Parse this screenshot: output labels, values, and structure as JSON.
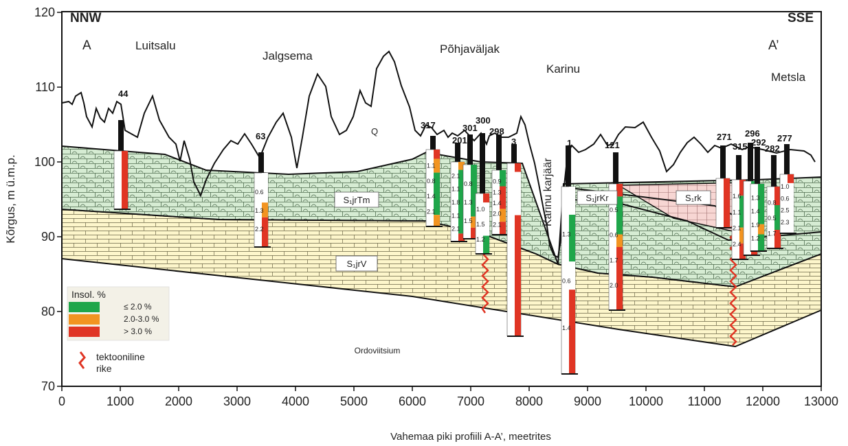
{
  "figure": {
    "ylabel": "Kõrgus, m ü.m.p.",
    "xlabel": "Vahemaa piki profiili A-A’, meetrites",
    "x_ticks": [
      "0",
      "1000",
      "2000",
      "3000",
      "4000",
      "5000",
      "6000",
      "7000",
      "8000",
      "9000",
      "10000",
      "11000",
      "12000",
      "13000"
    ],
    "y_ticks": [
      "70",
      "80",
      "90",
      "100",
      "110",
      "120"
    ],
    "direction_left": "NNW",
    "direction_right": "SSE",
    "profile_start": "A",
    "profile_end": "A’"
  },
  "places": [
    "Luitsalu",
    "Jalgsema",
    "Põhjaväljak",
    "Karinu",
    "Metsla"
  ],
  "quarry": "Karinu karjäär",
  "units": {
    "q": "Q",
    "jrtm": "S₁jrTm",
    "jrv": "S₁jrV",
    "jrkr": "S₁jrKr",
    "rk": "S₁rk",
    "ordovician": "Ordoviitsium"
  },
  "wells": [
    {
      "id": "44",
      "values": []
    },
    {
      "id": "63",
      "values": [
        "0.6",
        "1.3",
        "2.2"
      ]
    },
    {
      "id": "317",
      "values": [
        "1.1",
        "0.8",
        "1.4",
        "2.1"
      ]
    },
    {
      "id": "201",
      "values": [
        "2.1",
        "1.1",
        "1.8",
        "1.1",
        "2.1"
      ]
    },
    {
      "id": "301",
      "values": [
        "0.8",
        "1.3",
        "1.5"
      ]
    },
    {
      "id": "300",
      "values": [
        "1.0",
        "1.5",
        "1.2"
      ]
    },
    {
      "id": "298",
      "values": [
        "0.9",
        "1.3",
        "1.4",
        "2.0",
        "2.1"
      ]
    },
    {
      "id": "3",
      "values": []
    },
    {
      "id": "1",
      "values": [
        "1.3",
        "0.6",
        "1.4"
      ]
    },
    {
      "id": "121",
      "values": [
        "0.5",
        "0.6",
        "1.7",
        "2.0"
      ]
    },
    {
      "id": "271",
      "values": []
    },
    {
      "id": "315",
      "values": [
        "1.6",
        "1.1",
        "2.1",
        "2.4"
      ]
    },
    {
      "id": "296",
      "values": []
    },
    {
      "id": "292",
      "values": [
        "1.3",
        "1.4",
        "1.9",
        "1.2"
      ]
    },
    {
      "id": "282",
      "values": [
        "0.8",
        "0.5",
        "1.7"
      ]
    },
    {
      "id": "277",
      "values": [
        "1.0",
        "0.6",
        "2.5",
        "2.3"
      ]
    }
  ],
  "legend": {
    "title": "Insol. %",
    "items": [
      {
        "label": "≤ 2.0 %",
        "color": "#1fa64a"
      },
      {
        "label": "2.0-3.0 %",
        "color": "#f29421"
      },
      {
        "label": "> 3.0 %",
        "color": "#e03524"
      }
    ],
    "fault_line1": "tektooniline",
    "fault_line2": "rike"
  },
  "colors": {
    "green_unit": "#d4ebd2",
    "yellow_unit": "#fdf6c9",
    "pink_unit": "#f6d2d0",
    "fault": "#e03524"
  }
}
